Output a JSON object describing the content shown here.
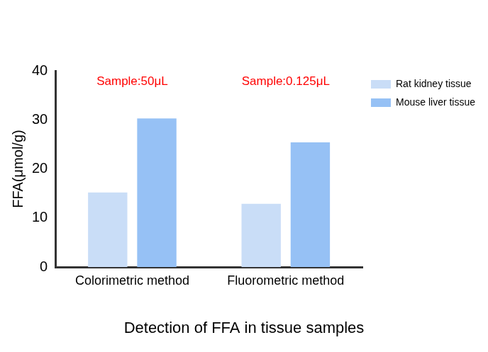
{
  "chart_data": {
    "type": "bar",
    "title": "Detection of FFA in tissue samples",
    "y_label": "FFA(μmol/g)",
    "categories": [
      "Colorimetric method",
      "Fluorometric method"
    ],
    "series": [
      {
        "name": "Rat kidney tissue",
        "color": "#c9ddf7",
        "values": [
          15.2,
          12.9
        ]
      },
      {
        "name": "Mouse liver tissue",
        "color": "#96c1f5",
        "values": [
          30.3,
          25.4
        ]
      }
    ],
    "annotations": [
      {
        "text": "Sample:50μL",
        "category": "Colorimetric method",
        "color": "#ff0000"
      },
      {
        "text": "Sample:0.125μL",
        "category": "Fluorometric method",
        "color": "#ff0000"
      }
    ],
    "ylim": [
      0,
      40
    ],
    "yticks": [
      0,
      10,
      20,
      30,
      40
    ],
    "grid": false,
    "legend": "upper right"
  }
}
